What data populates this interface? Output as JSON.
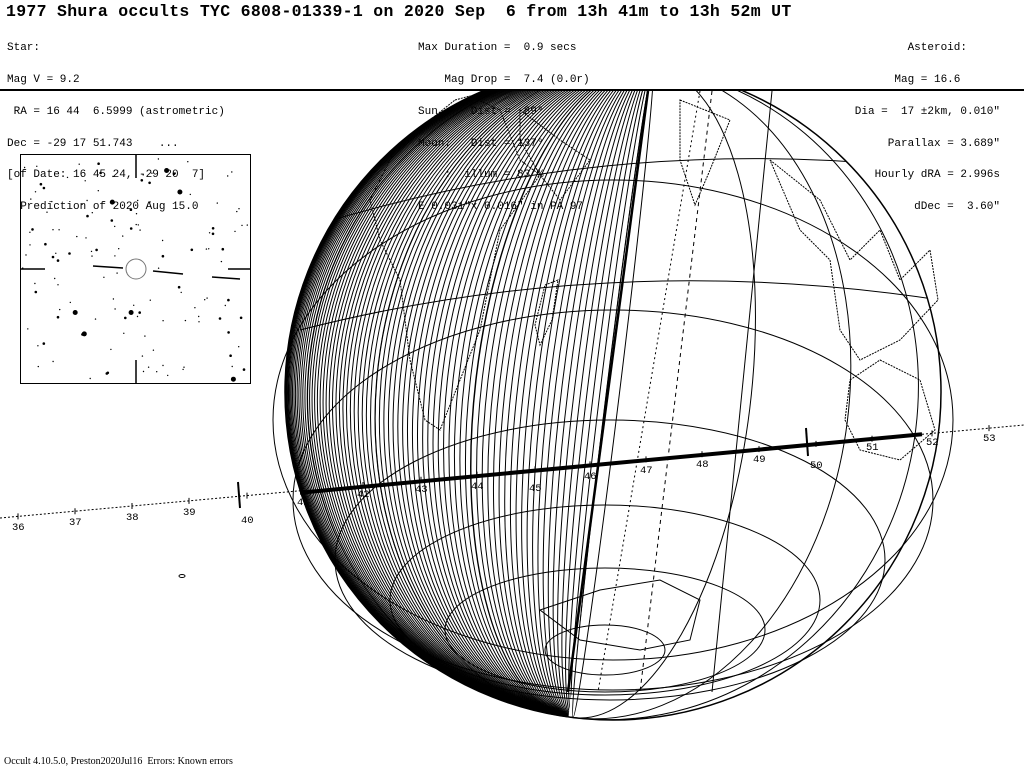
{
  "header": {
    "title": "1977 Shura occults TYC 6808-01339-1 on 2020 Sep  6 from 13h 41m to 13h 52m UT",
    "star": [
      "Star:",
      "Mag V = 9.2",
      " RA = 16 44  6.5999 (astrometric)",
      "Dec = -29 17 51.743    ...",
      "[of Date: 16 45 24, -29 20  7]",
      "  Prediction of 2020 Aug 15.0"
    ],
    "event": [
      "Max Duration =  0.9 secs",
      "    Mag Drop =  7.4 (0.0r)",
      "Sun :   Dist =  89°",
      "Moon:   Dist = 137°",
      "    :  illum = 83 %",
      "E 0.031\"x 0.016\" in PA 97"
    ],
    "asteroid": [
      "Asteroid:     ",
      "Mag = 16.6      ",
      "Dia =  17 ±2km, 0.010\"",
      "Parallax = 3.689\"",
      "Hourly dRA = 2.996s",
      "dDec =  3.60\""
    ]
  },
  "path": {
    "minute_labels": [
      "36",
      "37",
      "38",
      "39",
      "40",
      "41",
      "42",
      "43",
      "44",
      "45",
      "46",
      "47",
      "48",
      "49",
      "50",
      "51",
      "52",
      "53"
    ]
  },
  "footer": "Occult 4.10.5.0, Preston2020Jul16  Errors: Known errors",
  "colors": {
    "ink": "#000000",
    "background": "#ffffff"
  }
}
